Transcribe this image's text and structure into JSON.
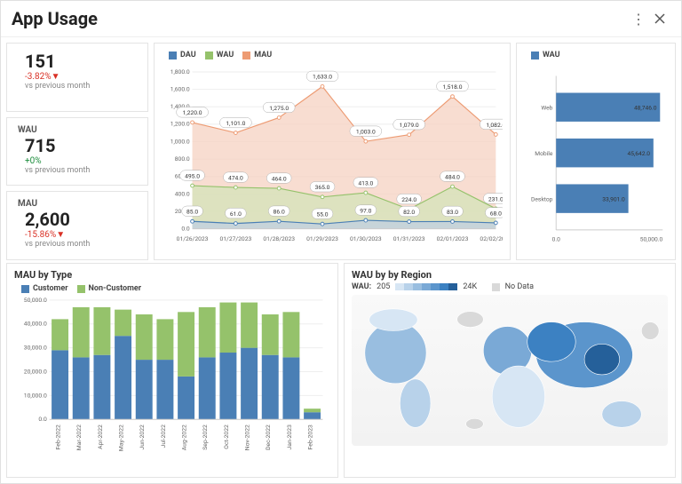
{
  "header": {
    "title": "App Usage"
  },
  "kpis": [
    {
      "label": "",
      "value": "151",
      "delta": "-3.82%▼",
      "delta_sign": "neg",
      "sub": "vs previous month"
    },
    {
      "label": "WAU",
      "value": "715",
      "delta": "+0%",
      "delta_sign": "pos",
      "sub": "vs previous month"
    },
    {
      "label": "MAU",
      "value": "2,600",
      "delta": "-15.86%▼",
      "delta_sign": "neg",
      "sub": "vs previous month"
    }
  ],
  "area_chart": {
    "legend": [
      {
        "label": "DAU",
        "color": "#4a7fb5"
      },
      {
        "label": "WAU",
        "color": "#95c26b"
      },
      {
        "label": "MAU",
        "color": "#ed9b73"
      }
    ],
    "x": [
      "01/26/2023",
      "01/27/2023",
      "01/28/2023",
      "01/29/2023",
      "01/30/2023",
      "01/31/2023",
      "02/01/2023",
      "02/02/2023"
    ],
    "series": {
      "dau": {
        "color": "#4a7fb5",
        "fill": "#bfcfe2",
        "values": [
          85,
          61,
          86,
          55,
          97,
          82,
          83,
          68
        ],
        "labels": [
          "85.0",
          "61.0",
          "86.0",
          "55.0",
          "97.0",
          "82.0",
          "83.0",
          "68.0"
        ]
      },
      "wau": {
        "color": "#95c26b",
        "fill": "#d4e3b8",
        "values": [
          495,
          474,
          464,
          365,
          413,
          224,
          484,
          231
        ],
        "labels": [
          "495.0",
          "474.0",
          "464.0",
          "365.0",
          "413.0",
          "224.0",
          "484.0",
          "231.0"
        ]
      },
      "mau": {
        "color": "#ed9b73",
        "fill": "#f6d2c1",
        "values": [
          1220,
          1101,
          1275,
          1633,
          1003,
          1079,
          1518,
          1082
        ],
        "labels": [
          "1,220.0",
          "1,101.0",
          "1,275.0",
          "1,633.0",
          "1,003.0",
          "1,079.0",
          "1,518.0",
          "1,082.0"
        ]
      }
    },
    "ylim": [
      0,
      1800
    ],
    "ytick": 200,
    "yticks_labels": [
      "0.0",
      "200.0",
      "400.0",
      "600.0",
      "800.0",
      "1,000.0",
      "1,200.0",
      "1,400.0",
      "1,600.0",
      "1,800.0"
    ],
    "grid_color": "#eeeeee",
    "bg": "#ffffff"
  },
  "wau_bar": {
    "legend": {
      "label": "WAU",
      "color": "#4a7fb5"
    },
    "categories": [
      "Web",
      "Mobile",
      "Desktop"
    ],
    "values": [
      48746,
      45642,
      33901
    ],
    "labels": [
      "48,746.0",
      "45,642.0",
      "33,901.0"
    ],
    "xlim": [
      0,
      50000
    ],
    "xticks": [
      "0.0",
      "50,000.0"
    ],
    "bar_color": "#4a7fb5",
    "grid_color": "#eeeeee"
  },
  "mau_type": {
    "title": "MAU by Type",
    "legend": [
      {
        "label": "Customer",
        "color": "#4a7fb5"
      },
      {
        "label": "Non-Customer",
        "color": "#95c26b"
      }
    ],
    "x": [
      "Feb-2022",
      "Mar-2022",
      "Apr-2022",
      "May-2022",
      "Jun-2022",
      "Jul-2022",
      "Aug-2022",
      "Sep-2022",
      "Oct-2022",
      "Nov-2022",
      "Dec-2022",
      "Jan-2023",
      "Feb-2023"
    ],
    "customer": [
      29000,
      26000,
      27000,
      35000,
      25000,
      25000,
      18000,
      26000,
      28000,
      30000,
      27000,
      26000,
      3000
    ],
    "noncustomer": [
      13000,
      21000,
      20000,
      11000,
      19000,
      17000,
      27000,
      21000,
      21000,
      19000,
      17000,
      19000,
      1500
    ],
    "ylim": [
      0,
      50000
    ],
    "ytick": 10000,
    "yticks_labels": [
      "0.0",
      "10,000.0",
      "20,000.0",
      "30,000.0",
      "40,000.0",
      "50,000.0"
    ],
    "grid_color": "#eeeeee"
  },
  "region": {
    "title": "WAU by by Region",
    "legend_prefix": "WAU:",
    "scale_min": "205",
    "scale_max": "24K",
    "nodata_label": "No Data",
    "scale_colors": [
      "#d7e6f4",
      "#b8d2ea",
      "#99bee0",
      "#7aa9d6",
      "#5b95cc",
      "#3c81c2",
      "#25609a"
    ],
    "nodata_color": "#d9d9d9"
  }
}
